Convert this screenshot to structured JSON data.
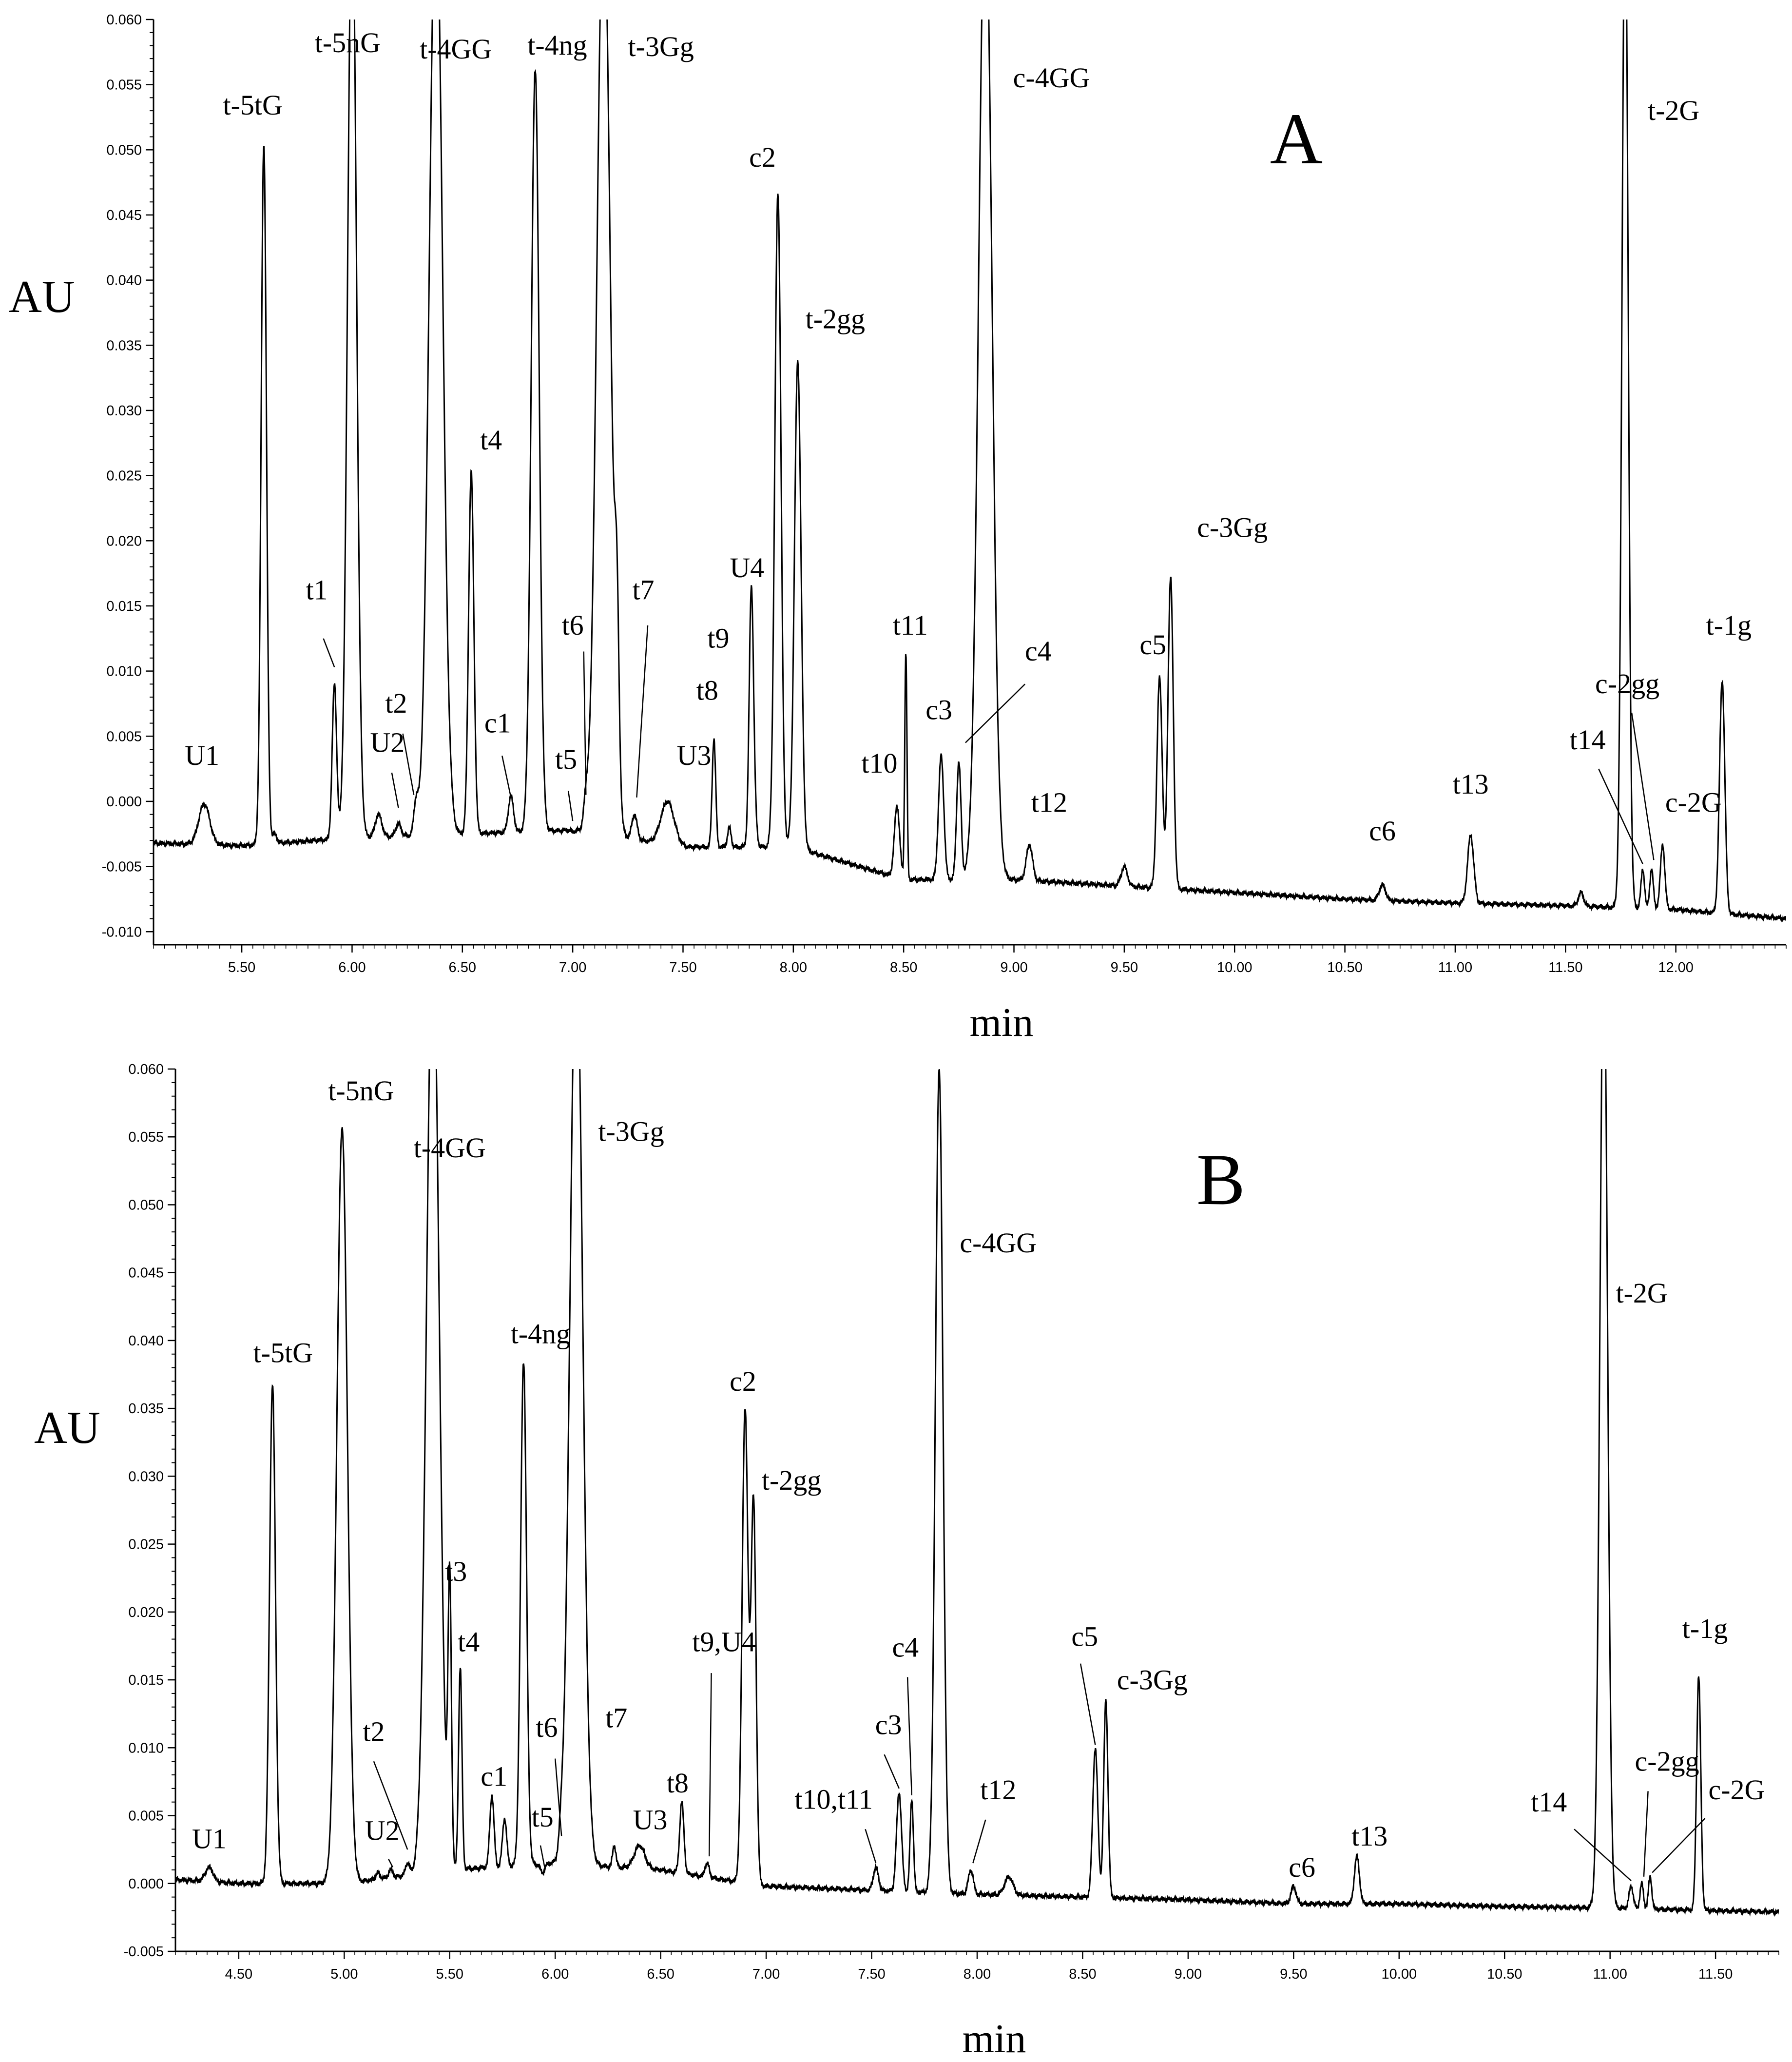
{
  "chart_data": [
    {
      "type": "line",
      "panel": "A",
      "xlabel": "min",
      "ylabel": "AU",
      "xlim": [
        5.1,
        12.5
      ],
      "ylim": [
        -0.011,
        0.06
      ],
      "xticks": [
        "5.50",
        "6.00",
        "6.50",
        "7.00",
        "7.50",
        "8.00",
        "8.50",
        "9.00",
        "9.50",
        "10.00",
        "10.50",
        "11.00",
        "11.50",
        "12.00"
      ],
      "yticks": [
        "-0.010",
        "-0.005",
        "0.000",
        "0.005",
        "0.010",
        "0.015",
        "0.020",
        "0.025",
        "0.030",
        "0.035",
        "0.040",
        "0.045",
        "0.050",
        "0.055",
        "0.060"
      ],
      "baseline": [
        [
          5.1,
          -0.0032
        ],
        [
          5.5,
          -0.0034
        ],
        [
          6.0,
          -0.0028
        ],
        [
          6.5,
          -0.0025
        ],
        [
          7.0,
          -0.0022
        ],
        [
          7.5,
          -0.0035
        ],
        [
          8.0,
          -0.0035
        ],
        [
          8.5,
          -0.006
        ],
        [
          9.0,
          -0.006
        ],
        [
          9.5,
          -0.0065
        ],
        [
          10.0,
          -0.007
        ],
        [
          10.5,
          -0.0075
        ],
        [
          11.0,
          -0.0078
        ],
        [
          11.5,
          -0.008
        ],
        [
          12.0,
          -0.0083
        ],
        [
          12.5,
          -0.009
        ]
      ],
      "peaks": [
        {
          "label": "U1",
          "rt": 5.33,
          "height": -0.0002,
          "w": 0.025
        },
        {
          "label": "t-5tG",
          "rt": 5.6,
          "height": 0.0505,
          "w": 0.012
        },
        {
          "label": "",
          "rt": 5.65,
          "height": -0.0025,
          "w": 0.01
        },
        {
          "label": "t1",
          "rt": 5.92,
          "height": 0.009,
          "w": 0.01
        },
        {
          "label": "t-5nG",
          "rt": 6.0,
          "height": 0.07,
          "w": 0.02
        },
        {
          "label": "",
          "rt": 6.12,
          "height": -0.001,
          "w": 0.015
        },
        {
          "label": "U2",
          "rt": 6.21,
          "height": -0.0017,
          "w": 0.012
        },
        {
          "label": "t2",
          "rt": 6.29,
          "height": -0.0003,
          "w": 0.01
        },
        {
          "label": "t-4GG",
          "rt": 6.38,
          "height": 0.07,
          "w": 0.03
        },
        {
          "label": "t4",
          "rt": 6.54,
          "height": 0.0253,
          "w": 0.012
        },
        {
          "label": "c1",
          "rt": 6.72,
          "height": 0.0004,
          "w": 0.012
        },
        {
          "label": "t-4ng",
          "rt": 6.83,
          "height": 0.0562,
          "w": 0.018
        },
        {
          "label": "t5",
          "rt": 7.0,
          "height": -0.0023,
          "w": 0.01
        },
        {
          "label": "t6",
          "rt": 7.06,
          "height": -0.0005,
          "w": 0.01
        },
        {
          "label": "t-3Gg",
          "rt": 7.14,
          "height": 0.07,
          "w": 0.03
        },
        {
          "label": "",
          "rt": 7.2,
          "height": 0.01,
          "w": 0.01
        },
        {
          "label": "t7",
          "rt": 7.28,
          "height": -0.001,
          "w": 0.012
        },
        {
          "label": "U3",
          "rt": 7.43,
          "height": 0.0,
          "w": 0.03
        },
        {
          "label": "t8",
          "rt": 7.64,
          "height": 0.0048,
          "w": 0.008
        },
        {
          "label": "t9",
          "rt": 7.71,
          "height": -0.002,
          "w": 0.008
        },
        {
          "label": "",
          "rt": 7.83,
          "height": -0.0025,
          "w": 0.008
        },
        {
          "label": "U4",
          "rt": 7.81,
          "height": 0.0165,
          "w": 0.01
        },
        {
          "label": "c2",
          "rt": 7.93,
          "height": 0.0467,
          "w": 0.014
        },
        {
          "label": "t-2gg",
          "rt": 8.02,
          "height": 0.0338,
          "w": 0.015
        },
        {
          "label": "",
          "rt": 8.1,
          "height": -0.004,
          "w": 0.01
        },
        {
          "label": "t10",
          "rt": 8.47,
          "height": -0.0003,
          "w": 0.012
        },
        {
          "label": "t11",
          "rt": 8.51,
          "height": 0.0115,
          "w": 0.005
        },
        {
          "label": "c3",
          "rt": 8.67,
          "height": 0.0035,
          "w": 0.012
        },
        {
          "label": "c4",
          "rt": 8.75,
          "height": 0.003,
          "w": 0.01
        },
        {
          "label": "c-4GG",
          "rt": 8.87,
          "height": 0.07,
          "w": 0.03
        },
        {
          "label": "t12",
          "rt": 9.07,
          "height": -0.0033,
          "w": 0.014
        },
        {
          "label": "",
          "rt": 9.5,
          "height": -0.005,
          "w": 0.014
        },
        {
          "label": "c5",
          "rt": 9.66,
          "height": 0.0095,
          "w": 0.012
        },
        {
          "label": "c-3Gg",
          "rt": 9.71,
          "height": 0.0172,
          "w": 0.012
        },
        {
          "label": "c6",
          "rt": 10.67,
          "height": -0.0064,
          "w": 0.014
        },
        {
          "label": "t13",
          "rt": 11.07,
          "height": -0.0026,
          "w": 0.014
        },
        {
          "label": "",
          "rt": 11.57,
          "height": -0.007,
          "w": 0.012
        },
        {
          "label": "t14",
          "rt": 11.85,
          "height": -0.0052,
          "w": 0.008
        },
        {
          "label": "c-2gg",
          "rt": 11.89,
          "height": -0.0052,
          "w": 0.008
        },
        {
          "label": "t-2G",
          "rt": 11.77,
          "height": 0.07,
          "w": 0.014
        },
        {
          "label": "c-2G",
          "rt": 11.94,
          "height": -0.0033,
          "w": 0.01
        },
        {
          "label": "t-1g",
          "rt": 12.21,
          "height": 0.0093,
          "w": 0.012
        }
      ]
    },
    {
      "type": "line",
      "panel": "B",
      "xlabel": "min",
      "ylabel": "AU",
      "xlim": [
        4.2,
        11.8
      ],
      "ylim": [
        -0.005,
        0.06
      ],
      "xticks": [
        "4.50",
        "5.00",
        "5.50",
        "6.00",
        "6.50",
        "7.00",
        "7.50",
        "8.00",
        "8.50",
        "9.00",
        "9.50",
        "10.00",
        "10.50",
        "11.00",
        "11.50"
      ],
      "yticks": [
        "-0.005",
        "0.000",
        "0.005",
        "0.010",
        "0.015",
        "0.020",
        "0.025",
        "0.030",
        "0.035",
        "0.040",
        "0.045",
        "0.050",
        "0.055",
        "0.060"
      ],
      "baseline": [
        [
          4.2,
          0.0003
        ],
        [
          4.5,
          0.0
        ],
        [
          5.0,
          0.0
        ],
        [
          5.5,
          0.001
        ],
        [
          6.0,
          0.0015
        ],
        [
          6.5,
          0.001
        ],
        [
          7.0,
          -0.0002
        ],
        [
          7.5,
          -0.0005
        ],
        [
          8.0,
          -0.0008
        ],
        [
          8.5,
          -0.001
        ],
        [
          9.0,
          -0.0012
        ],
        [
          9.5,
          -0.0015
        ],
        [
          10.0,
          -0.0015
        ],
        [
          10.5,
          -0.0017
        ],
        [
          11.0,
          -0.0018
        ],
        [
          11.5,
          -0.002
        ],
        [
          11.8,
          -0.0021
        ]
      ],
      "peaks": [
        {
          "label": "U1",
          "rt": 4.36,
          "height": 0.0012,
          "w": 0.018
        },
        {
          "label": "t-5tG",
          "rt": 4.66,
          "height": 0.0368,
          "w": 0.014
        },
        {
          "label": "t-5nG",
          "rt": 4.99,
          "height": 0.0557,
          "w": 0.025
        },
        {
          "label": "U2",
          "rt": 5.16,
          "height": 0.0008,
          "w": 0.01
        },
        {
          "label": "",
          "rt": 5.22,
          "height": 0.001,
          "w": 0.01
        },
        {
          "label": "t2",
          "rt": 5.3,
          "height": 0.0015,
          "w": 0.01
        },
        {
          "label": "t-4GG",
          "rt": 5.42,
          "height": 0.07,
          "w": 0.03
        },
        {
          "label": "t3",
          "rt": 5.5,
          "height": 0.0215,
          "w": 0.008
        },
        {
          "label": "t4",
          "rt": 5.55,
          "height": 0.016,
          "w": 0.008
        },
        {
          "label": "c1",
          "rt": 5.7,
          "height": 0.0065,
          "w": 0.01
        },
        {
          "label": "",
          "rt": 5.76,
          "height": 0.0048,
          "w": 0.01
        },
        {
          "label": "t-4ng",
          "rt": 5.85,
          "height": 0.0385,
          "w": 0.014
        },
        {
          "label": "t5",
          "rt": 5.94,
          "height": 0.0008,
          "w": 0.01
        },
        {
          "label": "t6",
          "rt": 6.03,
          "height": 0.003,
          "w": 0.01
        },
        {
          "label": "t-3Gg",
          "rt": 6.1,
          "height": 0.07,
          "w": 0.03
        },
        {
          "label": "t7",
          "rt": 6.28,
          "height": 0.0028,
          "w": 0.008
        },
        {
          "label": "U3",
          "rt": 6.4,
          "height": 0.0028,
          "w": 0.025
        },
        {
          "label": "t8",
          "rt": 6.6,
          "height": 0.006,
          "w": 0.01
        },
        {
          "label": "t9,U4",
          "rt": 6.72,
          "height": 0.0015,
          "w": 0.01
        },
        {
          "label": "c2",
          "rt": 6.9,
          "height": 0.035,
          "w": 0.014
        },
        {
          "label": "t-2gg",
          "rt": 6.94,
          "height": 0.028,
          "w": 0.012
        },
        {
          "label": "t10,t11",
          "rt": 7.52,
          "height": 0.0012,
          "w": 0.012
        },
        {
          "label": "c3",
          "rt": 7.63,
          "height": 0.0067,
          "w": 0.012
        },
        {
          "label": "c4",
          "rt": 7.69,
          "height": 0.0062,
          "w": 0.008
        },
        {
          "label": "c-4GG",
          "rt": 7.82,
          "height": 0.06,
          "w": 0.018
        },
        {
          "label": "t12",
          "rt": 7.97,
          "height": 0.001,
          "w": 0.012
        },
        {
          "label": "",
          "rt": 8.15,
          "height": 0.0005,
          "w": 0.02
        },
        {
          "label": "c5",
          "rt": 8.56,
          "height": 0.01,
          "w": 0.012
        },
        {
          "label": "c-3Gg",
          "rt": 8.61,
          "height": 0.0135,
          "w": 0.01
        },
        {
          "label": "c6",
          "rt": 9.5,
          "height": -0.0002,
          "w": 0.012
        },
        {
          "label": "t13",
          "rt": 9.8,
          "height": 0.002,
          "w": 0.012
        },
        {
          "label": "t-2G",
          "rt": 10.97,
          "height": 0.07,
          "w": 0.018
        },
        {
          "label": "t14",
          "rt": 11.1,
          "height": -0.0002,
          "w": 0.01
        },
        {
          "label": "c-2gg",
          "rt": 11.15,
          "height": 0.0,
          "w": 0.008
        },
        {
          "label": "c-2G",
          "rt": 11.19,
          "height": 0.0005,
          "w": 0.008
        },
        {
          "label": "t-1g",
          "rt": 11.42,
          "height": 0.0153,
          "w": 0.01
        }
      ]
    }
  ],
  "labels": [
    {
      "panel_letter": "A",
      "items": [
        {
          "text": "t-5nG",
          "rt": 5.98,
          "y": 0.0575
        },
        {
          "text": "t-4GG",
          "rt": 6.47,
          "y": 0.057
        },
        {
          "text": "t-4ng",
          "rt": 6.93,
          "y": 0.0573
        },
        {
          "text": "t-3Gg",
          "rt": 7.4,
          "y": 0.0572
        },
        {
          "text": "t-5tG",
          "rt": 5.55,
          "y": 0.0527
        },
        {
          "text": "c-4GG",
          "rt": 9.17,
          "y": 0.0548
        },
        {
          "text": "t-2G",
          "rt": 11.99,
          "y": 0.0523
        },
        {
          "text": "c2",
          "rt": 7.86,
          "y": 0.0487
        },
        {
          "text": "t-2gg",
          "rt": 8.19,
          "y": 0.0363
        },
        {
          "text": "t4",
          "rt": 6.63,
          "y": 0.027
        },
        {
          "text": "c-3Gg",
          "rt": 9.99,
          "y": 0.0203
        },
        {
          "text": "U4",
          "rt": 7.79,
          "y": 0.0172
        },
        {
          "text": "t1",
          "rt": 5.84,
          "y": 0.0155
        },
        {
          "text": "t7",
          "rt": 7.32,
          "y": 0.0155
        },
        {
          "text": "t6",
          "rt": 7.0,
          "y": 0.0128
        },
        {
          "text": "t11",
          "rt": 8.53,
          "y": 0.0128
        },
        {
          "text": "t-1g",
          "rt": 12.24,
          "y": 0.0128
        },
        {
          "text": "t9",
          "rt": 7.66,
          "y": 0.0118
        },
        {
          "text": "c5",
          "rt": 9.63,
          "y": 0.0113
        },
        {
          "text": "c4",
          "rt": 9.11,
          "y": 0.0108
        },
        {
          "text": "c-2gg",
          "rt": 11.78,
          "y": 0.0083
        },
        {
          "text": "t2",
          "rt": 6.2,
          "y": 0.0068
        },
        {
          "text": "t8",
          "rt": 7.61,
          "y": 0.0078
        },
        {
          "text": "c3",
          "rt": 8.66,
          "y": 0.0063
        },
        {
          "text": "c1",
          "rt": 6.66,
          "y": 0.0053
        },
        {
          "text": "t14",
          "rt": 11.6,
          "y": 0.004
        },
        {
          "text": "U2",
          "rt": 6.16,
          "y": 0.0038
        },
        {
          "text": "U1",
          "rt": 5.32,
          "y": 0.0028
        },
        {
          "text": "t5",
          "rt": 6.97,
          "y": 0.0025
        },
        {
          "text": "U3",
          "rt": 7.55,
          "y": 0.0028
        },
        {
          "text": "t10",
          "rt": 8.39,
          "y": 0.0022
        },
        {
          "text": "t13",
          "rt": 11.07,
          "y": 0.0006
        },
        {
          "text": "c-2G",
          "rt": 12.08,
          "y": -0.0008
        },
        {
          "text": "t12",
          "rt": 9.16,
          "y": -0.0008
        },
        {
          "text": "c6",
          "rt": 10.67,
          "y": -0.003
        }
      ]
    },
    {
      "panel_letter": "B",
      "items": [
        {
          "text": "t-5nG",
          "rt": 5.08,
          "y": 0.0577
        },
        {
          "text": "t-4GG",
          "rt": 5.5,
          "y": 0.0535
        },
        {
          "text": "t-3Gg",
          "rt": 6.36,
          "y": 0.0547
        },
        {
          "text": "c-4GG",
          "rt": 8.1,
          "y": 0.0465
        },
        {
          "text": "t-2G",
          "rt": 11.15,
          "y": 0.0428
        },
        {
          "text": "t-5tG",
          "rt": 4.71,
          "y": 0.0384
        },
        {
          "text": "t-4ng",
          "rt": 5.93,
          "y": 0.0398
        },
        {
          "text": "c2",
          "rt": 6.89,
          "y": 0.0363
        },
        {
          "text": "t-2gg",
          "rt": 7.12,
          "y": 0.029
        },
        {
          "text": "t3",
          "rt": 5.53,
          "y": 0.0223
        },
        {
          "text": "t4",
          "rt": 5.59,
          "y": 0.0171
        },
        {
          "text": "t9,U4",
          "rt": 6.8,
          "y": 0.0171
        },
        {
          "text": "t-1g",
          "rt": 11.45,
          "y": 0.0181
        },
        {
          "text": "c4",
          "rt": 7.66,
          "y": 0.0167
        },
        {
          "text": "c5",
          "rt": 8.51,
          "y": 0.0175
        },
        {
          "text": "c-3Gg",
          "rt": 8.83,
          "y": 0.0143
        },
        {
          "text": "t7",
          "rt": 6.29,
          "y": 0.0115
        },
        {
          "text": "c3",
          "rt": 7.58,
          "y": 0.011
        },
        {
          "text": "t6",
          "rt": 5.96,
          "y": 0.0108
        },
        {
          "text": "t2",
          "rt": 5.14,
          "y": 0.0105
        },
        {
          "text": "c1",
          "rt": 5.71,
          "y": 0.0072
        },
        {
          "text": "c-2gg",
          "rt": 11.27,
          "y": 0.0083
        },
        {
          "text": "c-2G",
          "rt": 11.6,
          "y": 0.0062
        },
        {
          "text": "t12",
          "rt": 8.1,
          "y": 0.0062
        },
        {
          "text": "t8",
          "rt": 6.58,
          "y": 0.0067
        },
        {
          "text": "t10,t11",
          "rt": 7.32,
          "y": 0.0055
        },
        {
          "text": "t14",
          "rt": 10.71,
          "y": 0.0053
        },
        {
          "text": "t5",
          "rt": 5.94,
          "y": 0.0042
        },
        {
          "text": "U3",
          "rt": 6.45,
          "y": 0.004
        },
        {
          "text": "U2",
          "rt": 5.18,
          "y": 0.0032
        },
        {
          "text": "U1",
          "rt": 4.36,
          "y": 0.0026
        },
        {
          "text": "t13",
          "rt": 9.86,
          "y": 0.0028
        },
        {
          "text": "c6",
          "rt": 9.54,
          "y": 0.0005
        }
      ]
    }
  ]
}
